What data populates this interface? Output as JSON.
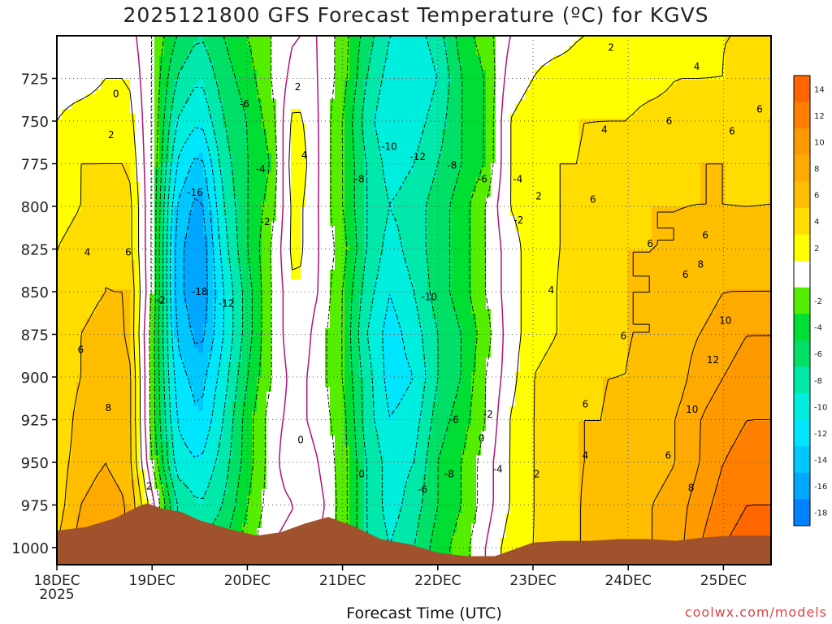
{
  "title": "2025121800 GFS Forecast Temperature (ºC) for KGVS",
  "credit": "coolwx.com/models",
  "chart_data": {
    "type": "heatmap",
    "title": "2025121800 GFS Forecast Temperature (ºC) for KGVS",
    "xlabel": "Forecast Time (UTC)",
    "ylabel": "",
    "x_ticks": [
      "18DEC",
      "19DEC",
      "20DEC",
      "21DEC",
      "22DEC",
      "23DEC",
      "24DEC",
      "25DEC"
    ],
    "x_year_label": "2025",
    "xlim_days": [
      0,
      7.5
    ],
    "y_ticks": [
      725,
      750,
      775,
      800,
      825,
      850,
      875,
      900,
      925,
      950,
      975,
      1000
    ],
    "ylim": [
      1010,
      700
    ],
    "grid": true,
    "colorbar": {
      "ticks": [
        14,
        12,
        10,
        8,
        6,
        4,
        2,
        -2,
        -4,
        -6,
        -8,
        -10,
        -12,
        -14,
        -16,
        -18
      ],
      "bins": [
        {
          "lo": 14,
          "hi": 16,
          "color": "#ff6600"
        },
        {
          "lo": 12,
          "hi": 14,
          "color": "#ff7f00"
        },
        {
          "lo": 10,
          "hi": 12,
          "color": "#ff9900"
        },
        {
          "lo": 8,
          "hi": 10,
          "color": "#ffaa00"
        },
        {
          "lo": 6,
          "hi": 8,
          "color": "#ffbf00"
        },
        {
          "lo": 4,
          "hi": 6,
          "color": "#ffdd00"
        },
        {
          "lo": 2,
          "hi": 4,
          "color": "#ffff00"
        },
        {
          "lo": -2,
          "hi": 2,
          "color": "#ffffff"
        },
        {
          "lo": -4,
          "hi": -2,
          "color": "#55ee00"
        },
        {
          "lo": -6,
          "hi": -4,
          "color": "#00dd33"
        },
        {
          "lo": -8,
          "hi": -6,
          "color": "#00e066"
        },
        {
          "lo": -10,
          "hi": -8,
          "color": "#00e8aa"
        },
        {
          "lo": -12,
          "hi": -10,
          "color": "#00eedd"
        },
        {
          "lo": -14,
          "hi": -12,
          "color": "#00e6ff"
        },
        {
          "lo": -16,
          "hi": -14,
          "color": "#00c8ff"
        },
        {
          "lo": -18,
          "hi": -16,
          "color": "#00a6ff"
        },
        {
          "lo": -20,
          "hi": -18,
          "color": "#0082ff"
        }
      ]
    },
    "columns_day": [
      0.0,
      0.25,
      0.5,
      0.75,
      1.0,
      1.25,
      1.5,
      1.75,
      2.0,
      2.25,
      2.5,
      2.75,
      3.0,
      3.25,
      3.5,
      3.75,
      4.0,
      4.25,
      4.5,
      4.75,
      5.0,
      5.25,
      5.5,
      5.75,
      6.0,
      6.25,
      6.5,
      6.75,
      7.0,
      7.25,
      7.5
    ],
    "levels_hPa": [
      1000,
      975,
      950,
      925,
      900,
      875,
      850,
      825,
      800,
      775,
      750,
      725,
      700
    ],
    "temperature_C": [
      [
        6,
        9,
        9,
        8,
        -1,
        -9,
        -8,
        -6,
        -3,
        0,
        1,
        0,
        -3,
        -8,
        -10,
        -8,
        -5,
        -3,
        0,
        3,
        4,
        5,
        6,
        7,
        7,
        8,
        9,
        12,
        14,
        15,
        15
      ],
      [
        5,
        8,
        9,
        8,
        1,
        -8,
        -10,
        -8,
        -4,
        -1,
        0,
        1,
        -3,
        -8,
        -11,
        -9,
        -6,
        -4,
        -1,
        2,
        4,
        5,
        6,
        7,
        7,
        8,
        9,
        11,
        13,
        14,
        14
      ],
      [
        5,
        7,
        8,
        7,
        -2,
        -11,
        -12,
        -9,
        -5,
        -1,
        2,
        0,
        -3,
        -8,
        -11,
        -10,
        -6,
        -4,
        -1,
        2,
        4,
        5,
        6,
        6,
        7,
        7,
        8,
        10,
        12,
        13,
        13
      ],
      [
        4,
        7,
        8,
        7,
        -3,
        -12,
        -14,
        -10,
        -5,
        -1,
        1,
        -1,
        -3,
        -9,
        -12,
        -11,
        -7,
        -5,
        -2,
        2,
        4,
        5,
        6,
        6,
        7,
        7,
        8,
        10,
        11,
        12,
        12
      ],
      [
        4,
        6,
        7,
        7,
        -3,
        -13,
        -15,
        -11,
        -6,
        -2,
        1,
        -1,
        -4,
        -9,
        -13,
        -12,
        -8,
        -6,
        -2,
        1,
        4,
        5,
        5,
        6,
        6,
        7,
        7,
        9,
        10,
        11,
        11
      ],
      [
        4,
        6,
        7,
        6,
        -3,
        -14,
        -17,
        -12,
        -7,
        -2,
        2,
        -1,
        -4,
        -10,
        -13,
        -11,
        -8,
        -6,
        -3,
        1,
        3,
        4,
        5,
        5,
        6,
        6,
        7,
        8,
        9,
        10,
        10
      ],
      [
        4,
        5,
        6,
        6,
        -2,
        -15,
        -18,
        -12,
        -7,
        -2,
        2,
        0,
        -4,
        -9,
        -12,
        -10,
        -7,
        -5,
        -2,
        1,
        3,
        4,
        5,
        5,
        6,
        6,
        7,
        7,
        8,
        8,
        8
      ],
      [
        4,
        5,
        6,
        5,
        -2,
        -15,
        -18,
        -11,
        -6,
        -2,
        3,
        0,
        -3,
        -8,
        -11,
        -9,
        -7,
        -5,
        -2,
        1,
        3,
        4,
        4,
        5,
        6,
        6,
        6,
        7,
        7,
        7,
        7
      ],
      [
        3,
        4,
        5,
        5,
        -2,
        -14,
        -17,
        -10,
        -6,
        -3,
        3,
        0,
        -4,
        -8,
        -10,
        -9,
        -7,
        -5,
        -2,
        2,
        3,
        4,
        4,
        5,
        5,
        6,
        6,
        6,
        6,
        6,
        6
      ],
      [
        3,
        4,
        4,
        4,
        -2,
        -12,
        -15,
        -9,
        -6,
        -4,
        4,
        0,
        -4,
        -8,
        -11,
        -10,
        -8,
        -6,
        -4,
        2,
        3,
        4,
        4,
        5,
        5,
        5,
        5,
        6,
        6,
        5,
        6
      ],
      [
        2,
        3,
        3,
        3,
        -2,
        -10,
        -12,
        -8,
        -6,
        -3,
        3,
        0,
        -4,
        -9,
        -12,
        -11,
        -9,
        -6,
        -4,
        2,
        3,
        3,
        4,
        4,
        4,
        5,
        5,
        5,
        5,
        5,
        6
      ],
      [
        1,
        1,
        2,
        2,
        -2,
        -8,
        -10,
        -7,
        -5,
        -2,
        1,
        0,
        -3,
        -8,
        -11,
        -12,
        -10,
        -6,
        -4,
        1,
        2,
        3,
        3,
        3,
        3,
        3,
        4,
        4,
        4,
        5,
        5
      ],
      [
        0,
        0,
        1,
        1,
        -2,
        -6,
        -8,
        -6,
        -4,
        -2,
        0,
        0,
        -3,
        -7,
        -10,
        -11,
        -9,
        -5,
        -3,
        0,
        1,
        1,
        2,
        2,
        2,
        2,
        3,
        3,
        4,
        4,
        4
      ]
    ],
    "contour_labels": [
      {
        "day": 0.62,
        "p": 734,
        "text": "0"
      },
      {
        "day": 0.57,
        "p": 758,
        "text": "2"
      },
      {
        "day": 0.32,
        "p": 827,
        "text": "4"
      },
      {
        "day": 0.75,
        "p": 827,
        "text": "6"
      },
      {
        "day": 0.25,
        "p": 884,
        "text": "6"
      },
      {
        "day": 0.54,
        "p": 918,
        "text": "8"
      },
      {
        "day": 0.97,
        "p": 964,
        "text": "2"
      },
      {
        "day": 1.09,
        "p": 855,
        "text": "-2"
      },
      {
        "day": 1.45,
        "p": 792,
        "text": "-16"
      },
      {
        "day": 1.5,
        "p": 850,
        "text": "-18"
      },
      {
        "day": 1.78,
        "p": 857,
        "text": "-12"
      },
      {
        "day": 1.97,
        "p": 740,
        "text": "-6"
      },
      {
        "day": 2.14,
        "p": 778,
        "text": "-4"
      },
      {
        "day": 2.19,
        "p": 809,
        "text": "-2"
      },
      {
        "day": 2.53,
        "p": 730,
        "text": "2"
      },
      {
        "day": 2.6,
        "p": 770,
        "text": "4"
      },
      {
        "day": 2.56,
        "p": 937,
        "text": "0"
      },
      {
        "day": 3.18,
        "p": 784,
        "text": "-8"
      },
      {
        "day": 3.49,
        "p": 765,
        "text": "-10"
      },
      {
        "day": 3.79,
        "p": 771,
        "text": "-12"
      },
      {
        "day": 4.15,
        "p": 776,
        "text": "-8"
      },
      {
        "day": 4.47,
        "p": 784,
        "text": "-6"
      },
      {
        "day": 4.84,
        "p": 784,
        "text": "-4"
      },
      {
        "day": 4.85,
        "p": 808,
        "text": "-2"
      },
      {
        "day": 5.06,
        "p": 794,
        "text": "2"
      },
      {
        "day": 3.91,
        "p": 853,
        "text": "-10"
      },
      {
        "day": 4.17,
        "p": 925,
        "text": "-6"
      },
      {
        "day": 4.53,
        "p": 922,
        "text": "-2"
      },
      {
        "day": 4.46,
        "p": 936,
        "text": "0"
      },
      {
        "day": 4.12,
        "p": 957,
        "text": "-8"
      },
      {
        "day": 3.84,
        "p": 966,
        "text": "-6"
      },
      {
        "day": 4.63,
        "p": 954,
        "text": "-4"
      },
      {
        "day": 5.04,
        "p": 957,
        "text": "2"
      },
      {
        "day": 3.2,
        "p": 957,
        "text": "0"
      },
      {
        "day": 5.19,
        "p": 849,
        "text": "4"
      },
      {
        "day": 5.63,
        "p": 796,
        "text": "6"
      },
      {
        "day": 5.75,
        "p": 755,
        "text": "4"
      },
      {
        "day": 5.82,
        "p": 707,
        "text": "2"
      },
      {
        "day": 6.72,
        "p": 718,
        "text": "4"
      },
      {
        "day": 6.81,
        "p": 817,
        "text": "6"
      },
      {
        "day": 7.38,
        "p": 743,
        "text": "6"
      },
      {
        "day": 7.09,
        "p": 756,
        "text": "6"
      },
      {
        "day": 6.43,
        "p": 750,
        "text": "6"
      },
      {
        "day": 6.23,
        "p": 822,
        "text": "6"
      },
      {
        "day": 6.6,
        "p": 840,
        "text": "6"
      },
      {
        "day": 6.76,
        "p": 834,
        "text": "8"
      },
      {
        "day": 5.95,
        "p": 876,
        "text": "6"
      },
      {
        "day": 5.55,
        "p": 916,
        "text": "6"
      },
      {
        "day": 5.55,
        "p": 946,
        "text": "4"
      },
      {
        "day": 6.42,
        "p": 946,
        "text": "6"
      },
      {
        "day": 6.66,
        "p": 965,
        "text": "8"
      },
      {
        "day": 7.02,
        "p": 867,
        "text": "10"
      },
      {
        "day": 6.89,
        "p": 890,
        "text": "12"
      },
      {
        "day": 6.67,
        "p": 919,
        "text": "10"
      }
    ],
    "terrain_hPa": [
      {
        "day": 0.0,
        "p": 990
      },
      {
        "day": 0.3,
        "p": 988
      },
      {
        "day": 0.6,
        "p": 983
      },
      {
        "day": 0.85,
        "p": 976
      },
      {
        "day": 0.95,
        "p": 974
      },
      {
        "day": 1.1,
        "p": 977
      },
      {
        "day": 1.3,
        "p": 979
      },
      {
        "day": 1.5,
        "p": 984
      },
      {
        "day": 1.8,
        "p": 989
      },
      {
        "day": 2.1,
        "p": 993
      },
      {
        "day": 2.35,
        "p": 991
      },
      {
        "day": 2.6,
        "p": 986
      },
      {
        "day": 2.85,
        "p": 982
      },
      {
        "day": 3.1,
        "p": 987
      },
      {
        "day": 3.4,
        "p": 995
      },
      {
        "day": 3.7,
        "p": 998
      },
      {
        "day": 4.0,
        "p": 1003
      },
      {
        "day": 4.3,
        "p": 1005
      },
      {
        "day": 4.6,
        "p": 1005
      },
      {
        "day": 4.85,
        "p": 1000
      },
      {
        "day": 5.0,
        "p": 997
      },
      {
        "day": 5.3,
        "p": 996
      },
      {
        "day": 5.6,
        "p": 996
      },
      {
        "day": 5.9,
        "p": 995
      },
      {
        "day": 6.2,
        "p": 995
      },
      {
        "day": 6.5,
        "p": 996
      },
      {
        "day": 6.8,
        "p": 994
      },
      {
        "day": 7.1,
        "p": 993
      },
      {
        "day": 7.5,
        "p": 993
      }
    ]
  }
}
